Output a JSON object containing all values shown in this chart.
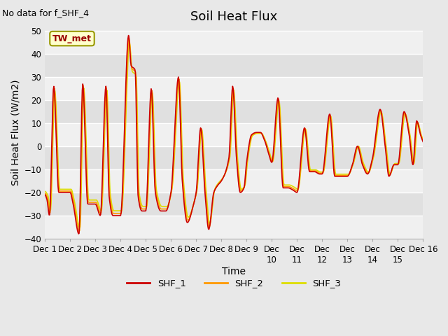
{
  "title": "Soil Heat Flux",
  "ylabel": "Soil Heat Flux (W/m2)",
  "xlabel": "Time",
  "note": "No data for f_SHF_4",
  "legend_labels": [
    "SHF_1",
    "SHF_2",
    "SHF_3"
  ],
  "legend_colors": [
    "#cc0000",
    "#ff9900",
    "#dddd00"
  ],
  "box_label": "TW_met",
  "box_facecolor": "#ffffcc",
  "box_edgecolor": "#999900",
  "box_textcolor": "#990000",
  "ylim": [
    -40,
    55
  ],
  "xlim": [
    0,
    15
  ],
  "xtick_labels": [
    "Dec 1",
    "Dec 2",
    "Dec 3",
    "Dec 4",
    "Dec 5",
    "Dec 6",
    "Dec 7",
    "Dec 8",
    "Dec 9",
    "Dec 9",
    "Dec 10",
    "Dec 11",
    "Dec 12",
    "Dec 13",
    "Dec 14",
    "Dec 15",
    "Dec 16"
  ],
  "bg_color": "#e8e8e8",
  "plot_bg": "#e8e8e8",
  "grid_color": "#ffffff",
  "title_fontsize": 13,
  "axis_fontsize": 10,
  "tick_fontsize": 8.5,
  "note_fontsize": 9
}
